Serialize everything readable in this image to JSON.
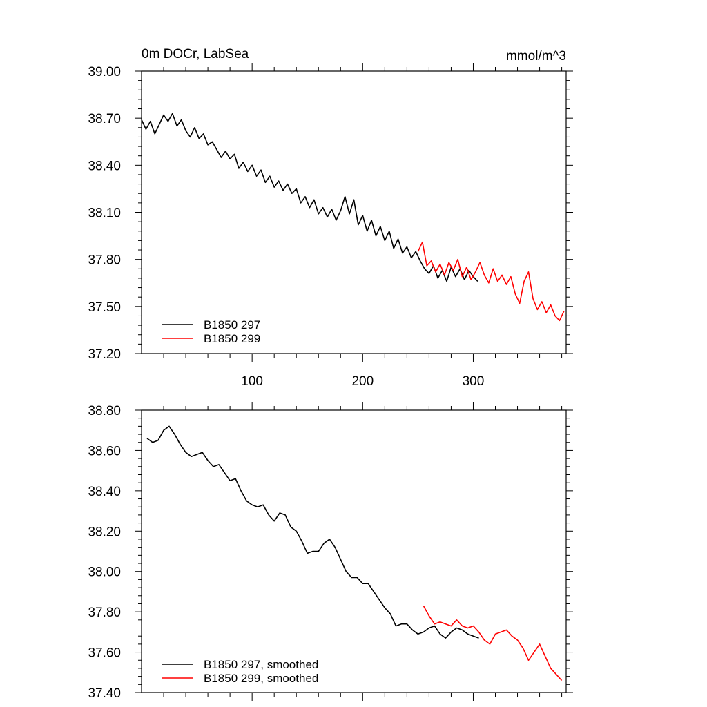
{
  "chart_data": [
    {
      "type": "line",
      "title_left": "0m DOCr, LabSea",
      "title_right": "mmol/m^3",
      "xlim": [
        0,
        384
      ],
      "ylim": [
        37.2,
        39.0
      ],
      "xticks": [
        100,
        200,
        300
      ],
      "xtick_labels": [
        "100",
        "200",
        "300"
      ],
      "yticks": [
        37.2,
        37.5,
        37.8,
        38.1,
        38.4,
        38.7,
        39.0
      ],
      "ytick_labels": [
        "37.20",
        "37.50",
        "37.80",
        "38.10",
        "38.40",
        "38.70",
        "39.00"
      ],
      "legend_position": "bottom-left",
      "series": [
        {
          "name": "B1850 297",
          "color": "#000000",
          "x": [
            0,
            4,
            8,
            12,
            16,
            20,
            24,
            28,
            32,
            36,
            40,
            44,
            48,
            52,
            56,
            60,
            64,
            68,
            72,
            76,
            80,
            84,
            88,
            92,
            96,
            100,
            104,
            108,
            112,
            116,
            120,
            124,
            128,
            132,
            136,
            140,
            144,
            148,
            152,
            156,
            160,
            164,
            168,
            172,
            176,
            180,
            184,
            188,
            192,
            196,
            200,
            204,
            208,
            212,
            216,
            220,
            224,
            228,
            232,
            236,
            240,
            244,
            248,
            252,
            256,
            260,
            264,
            268,
            272,
            276,
            280,
            284,
            288,
            292,
            296,
            300,
            304
          ],
          "values": [
            38.69,
            38.63,
            38.68,
            38.6,
            38.66,
            38.72,
            38.68,
            38.73,
            38.65,
            38.69,
            38.62,
            38.58,
            38.64,
            38.57,
            38.6,
            38.53,
            38.55,
            38.5,
            38.45,
            38.49,
            38.44,
            38.47,
            38.38,
            38.42,
            38.36,
            38.4,
            38.33,
            38.37,
            38.29,
            38.33,
            38.26,
            38.3,
            38.24,
            38.28,
            38.22,
            38.25,
            38.16,
            38.2,
            38.13,
            38.18,
            38.09,
            38.13,
            38.07,
            38.12,
            38.05,
            38.11,
            38.2,
            38.09,
            38.18,
            38.02,
            38.08,
            37.98,
            38.05,
            37.95,
            38.01,
            37.92,
            37.98,
            37.87,
            37.93,
            37.84,
            37.88,
            37.81,
            37.85,
            37.79,
            37.74,
            37.71,
            37.76,
            37.68,
            37.73,
            37.66,
            37.75,
            37.69,
            37.74,
            37.67,
            37.73,
            37.69,
            37.66
          ]
        },
        {
          "name": "B1850 299",
          "color": "#ff0000",
          "x": [
            250,
            254,
            258,
            262,
            266,
            270,
            274,
            278,
            282,
            286,
            290,
            294,
            298,
            302,
            306,
            310,
            314,
            318,
            322,
            326,
            330,
            334,
            338,
            342,
            346,
            350,
            354,
            358,
            362,
            366,
            370,
            374,
            378,
            382
          ],
          "values": [
            37.85,
            37.91,
            37.76,
            37.79,
            37.72,
            37.77,
            37.7,
            37.78,
            37.73,
            37.8,
            37.69,
            37.75,
            37.67,
            37.72,
            37.78,
            37.7,
            37.65,
            37.74,
            37.66,
            37.7,
            37.64,
            37.69,
            37.58,
            37.52,
            37.66,
            37.72,
            37.55,
            37.48,
            37.53,
            37.46,
            37.51,
            37.44,
            37.41,
            37.47
          ]
        }
      ]
    },
    {
      "type": "line",
      "xlim": [
        0,
        384
      ],
      "ylim": [
        37.4,
        38.8
      ],
      "xticks": [
        100,
        200,
        300
      ],
      "yticks": [
        37.4,
        37.6,
        37.8,
        38.0,
        38.2,
        38.4,
        38.6,
        38.8
      ],
      "ytick_labels": [
        "37.40",
        "37.60",
        "37.80",
        "38.00",
        "38.20",
        "38.40",
        "38.60",
        "38.80"
      ],
      "legend_position": "bottom-left",
      "series": [
        {
          "name": "B1850 297, smoothed",
          "color": "#000000",
          "x": [
            5,
            10,
            15,
            20,
            25,
            30,
            35,
            40,
            45,
            50,
            55,
            60,
            65,
            70,
            75,
            80,
            85,
            90,
            95,
            100,
            105,
            110,
            115,
            120,
            125,
            130,
            135,
            140,
            145,
            150,
            155,
            160,
            165,
            170,
            175,
            180,
            185,
            190,
            195,
            200,
            205,
            210,
            215,
            220,
            225,
            230,
            235,
            240,
            245,
            250,
            255,
            260,
            265,
            270,
            275,
            280,
            285,
            290,
            295,
            300,
            305
          ],
          "values": [
            38.66,
            38.64,
            38.65,
            38.7,
            38.72,
            38.68,
            38.63,
            38.59,
            38.57,
            38.58,
            38.59,
            38.55,
            38.52,
            38.53,
            38.49,
            38.45,
            38.46,
            38.4,
            38.35,
            38.33,
            38.32,
            38.33,
            38.28,
            38.25,
            38.29,
            38.28,
            38.22,
            38.2,
            38.15,
            38.09,
            38.1,
            38.1,
            38.14,
            38.16,
            38.12,
            38.06,
            38.0,
            37.97,
            37.97,
            37.94,
            37.94,
            37.9,
            37.86,
            37.82,
            37.79,
            37.73,
            37.74,
            37.74,
            37.71,
            37.69,
            37.7,
            37.72,
            37.73,
            37.69,
            37.67,
            37.7,
            37.72,
            37.71,
            37.69,
            37.68,
            37.67
          ]
        },
        {
          "name": "B1850 299, smoothed",
          "color": "#ff0000",
          "x": [
            255,
            260,
            265,
            270,
            275,
            280,
            285,
            290,
            295,
            300,
            305,
            310,
            315,
            320,
            325,
            330,
            335,
            340,
            345,
            350,
            355,
            360,
            365,
            370,
            375,
            380
          ],
          "values": [
            37.83,
            37.78,
            37.74,
            37.75,
            37.74,
            37.73,
            37.76,
            37.73,
            37.72,
            37.73,
            37.7,
            37.66,
            37.64,
            37.69,
            37.7,
            37.71,
            37.68,
            37.66,
            37.62,
            37.56,
            37.6,
            37.64,
            37.58,
            37.52,
            37.49,
            37.46
          ]
        }
      ]
    }
  ]
}
